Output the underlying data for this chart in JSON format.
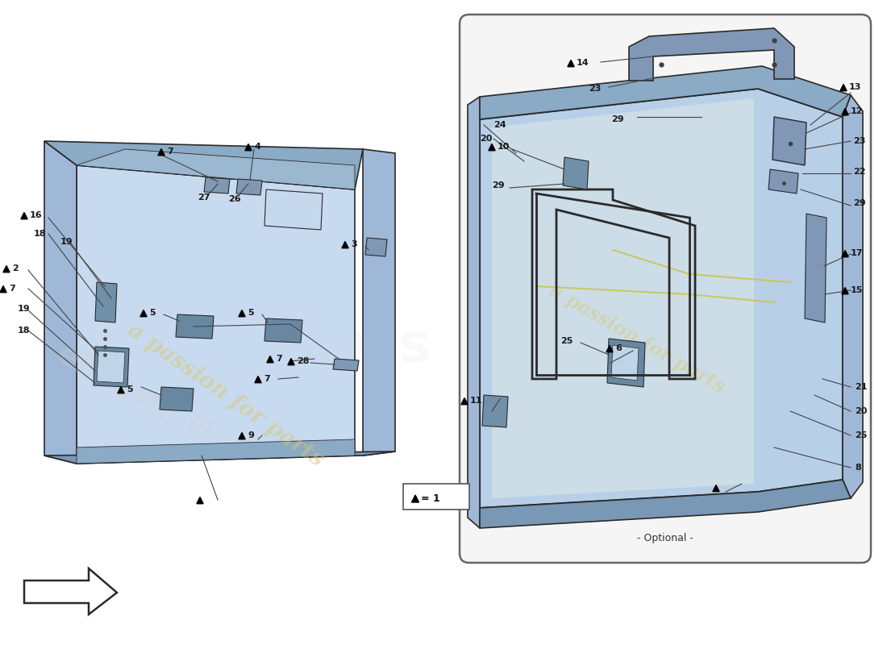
{
  "bg_color": "#ffffff",
  "light_blue": "#b8cfe8",
  "light_blue2": "#c8daf0",
  "mid_blue": "#a0b8d8",
  "dark_blue": "#8aaac5",
  "darker_blue": "#7898b5",
  "dark_line": "#2a2a2a",
  "label_color": "#1a1a1a",
  "watermark_color": "#d4c870",
  "watermark_text": "a passion for parts",
  "optional_label": "- Optional -",
  "eliparts_color": "#cccccc"
}
